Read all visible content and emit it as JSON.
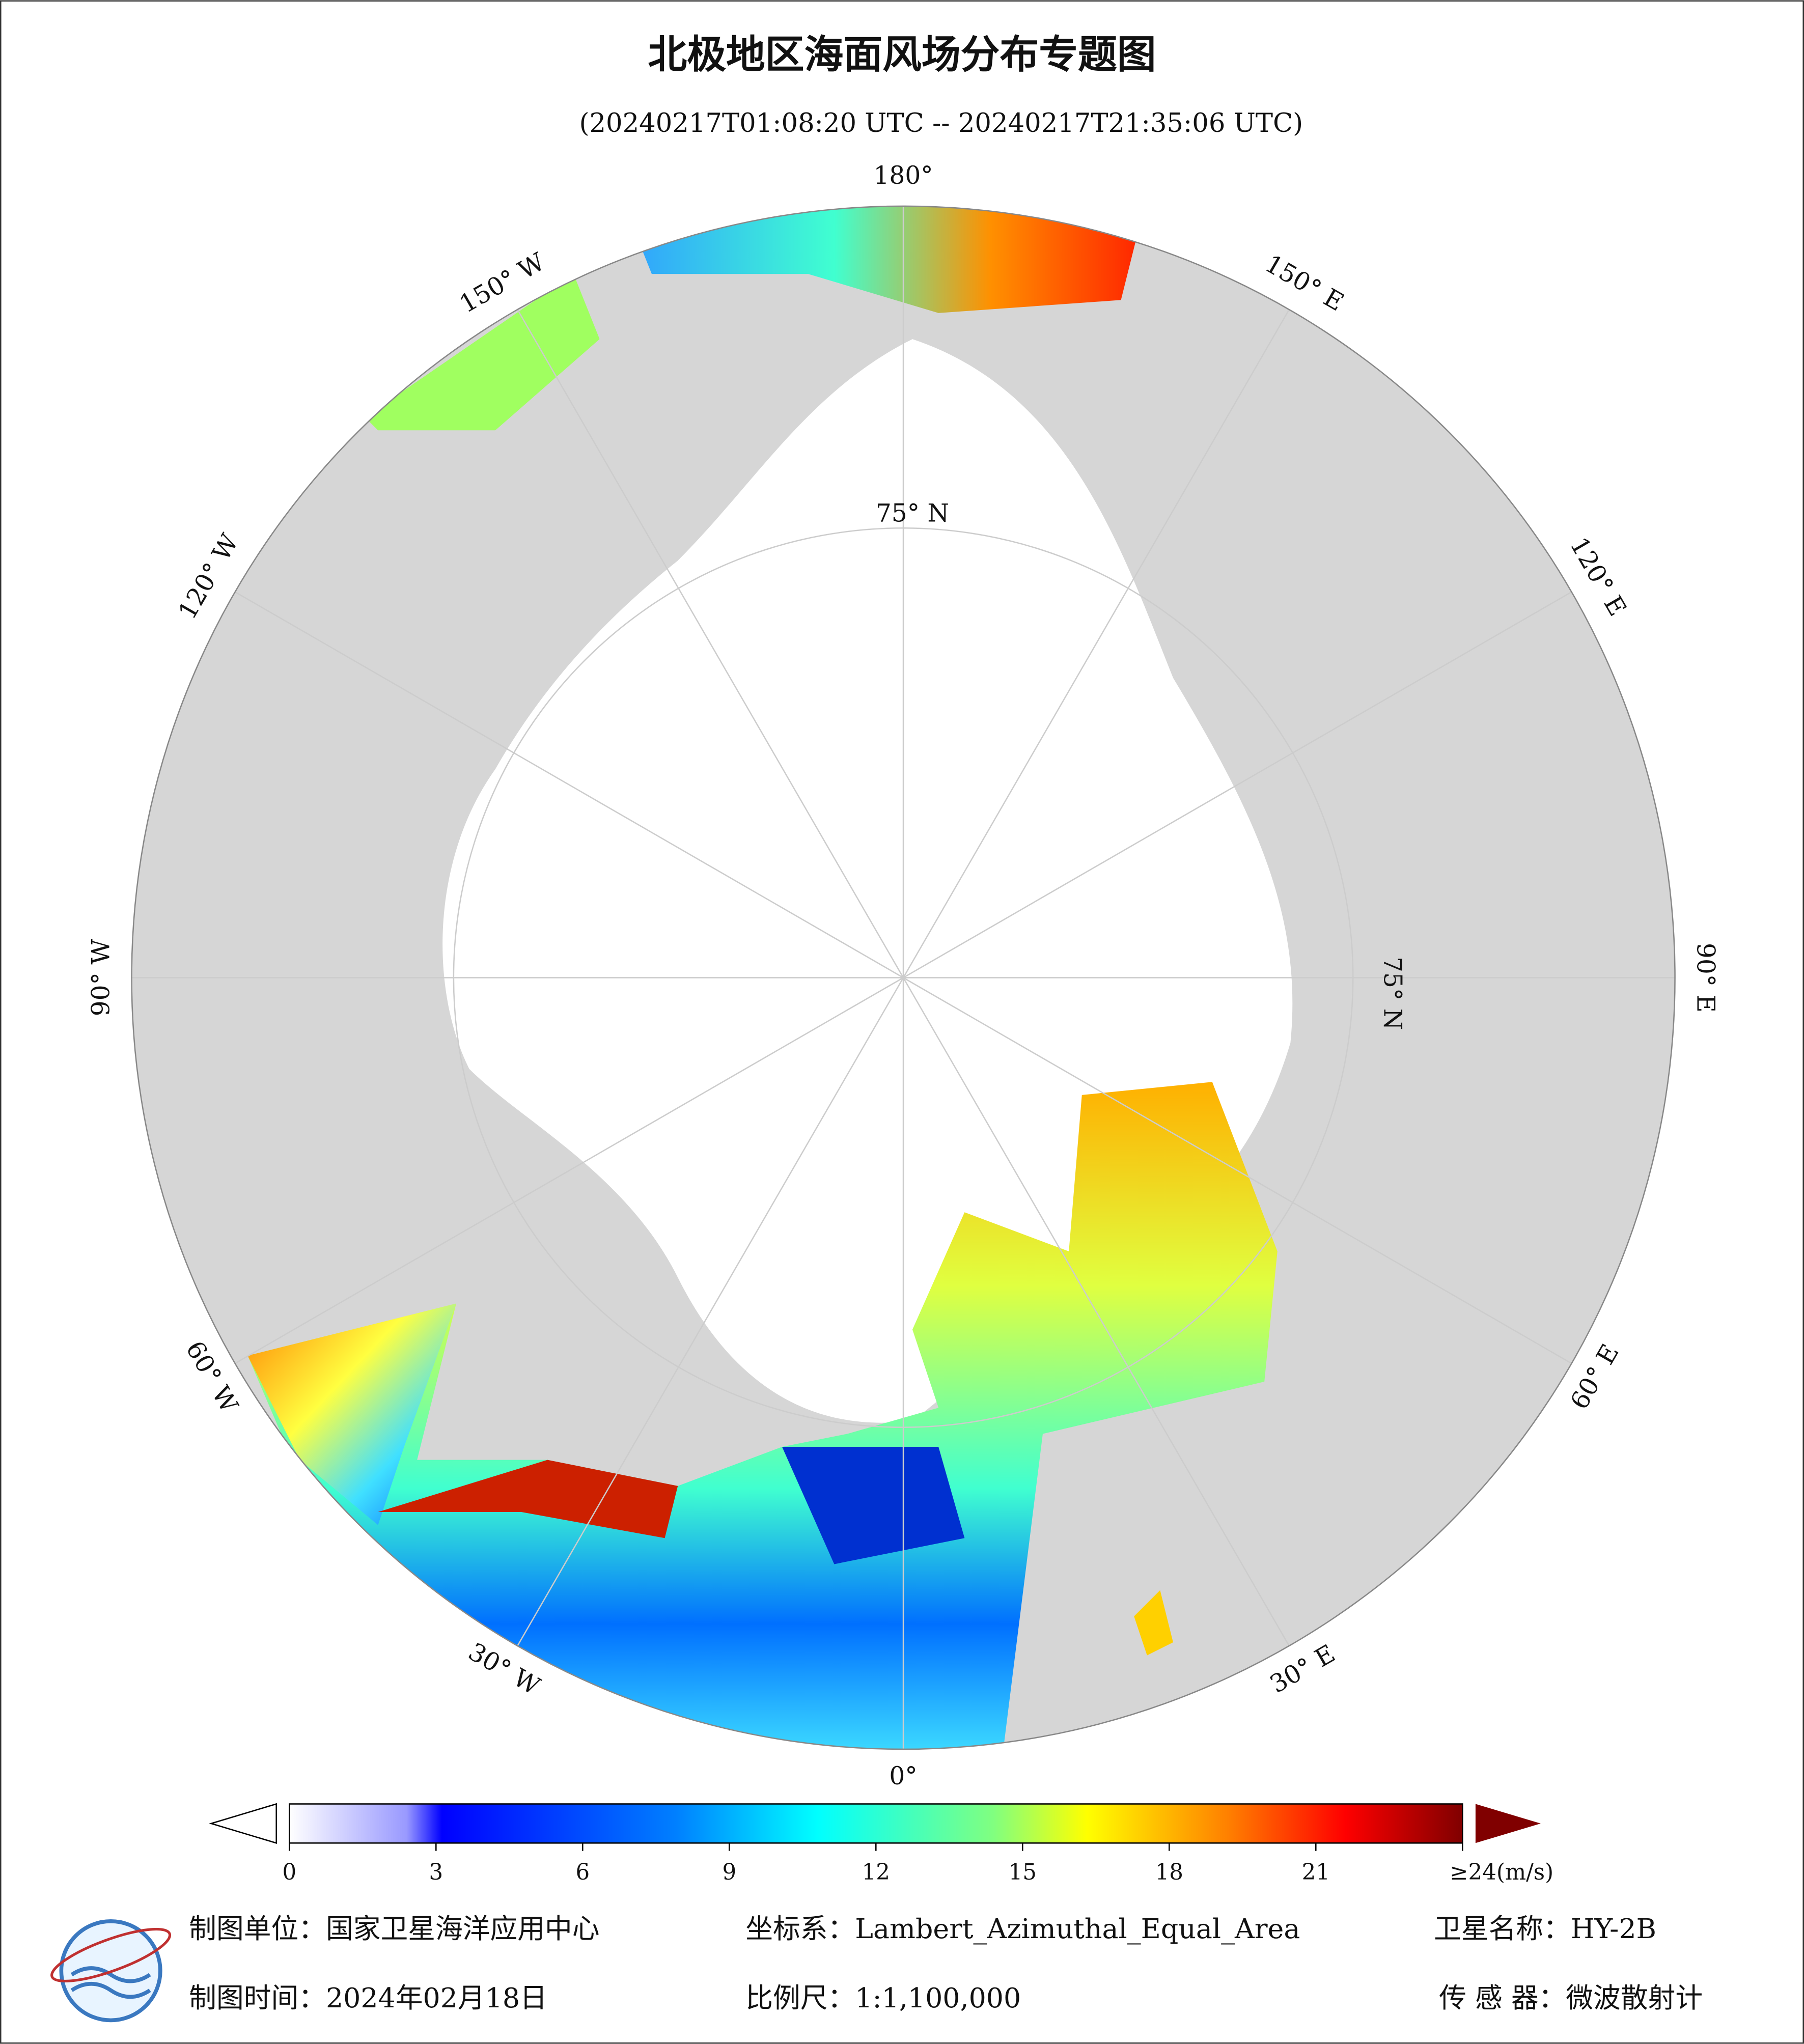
{
  "header": {
    "title": "北极地区海面风场分布专题图",
    "subtitle": "(20240217T01:08:20 UTC -- 20240217T21:35:06 UTC)"
  },
  "map": {
    "longitude_labels": [
      "180°",
      "150° E",
      "120° E",
      "90° E",
      "60° E",
      "30° E",
      "0°",
      "30° W",
      "60° W",
      "90° W",
      "120° W",
      "150° W"
    ],
    "latitude_label": "75° N"
  },
  "colorbar": {
    "lim": [
      0,
      24
    ],
    "ticks": [
      0,
      3,
      6,
      9,
      12,
      15,
      18,
      21,
      {
        "value": 24,
        "label": "≥24(m/s)"
      }
    ]
  },
  "footer": {
    "items": [
      "制图单位：国家卫星海洋应用中心",
      "坐标系：Lambert_Azimuthal_Equal_Area",
      "卫星名称：HY-2B",
      "制图时间：2024年02月18日",
      "比例尺：1:1,100,000",
      "传 感 器：微波散射计"
    ]
  }
}
